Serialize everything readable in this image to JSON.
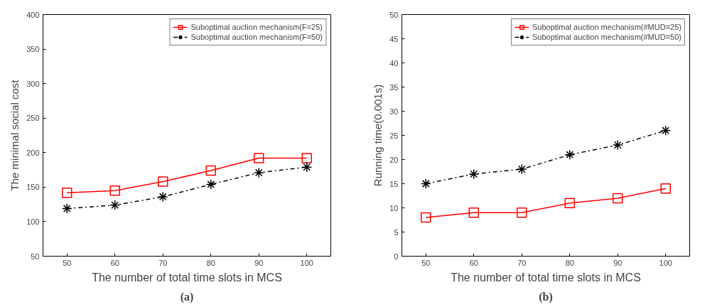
{
  "chart_data": [
    {
      "type": "line",
      "xlabel": "The number of total time slots in MCS",
      "ylabel": "The minimal social cost",
      "x": [
        50,
        60,
        70,
        80,
        90,
        100
      ],
      "xlim": [
        45,
        105
      ],
      "xticks": [
        50,
        60,
        70,
        80,
        90,
        100
      ],
      "ylim": [
        50,
        400
      ],
      "yticks": [
        50,
        100,
        150,
        200,
        250,
        300,
        350,
        400
      ],
      "grid": false,
      "legend": "top right",
      "annotations": [
        "(a)"
      ],
      "series": [
        {
          "name": "Suboptimal auction mechanism(F=25)",
          "color": "#ff0000",
          "values": [
            142,
            145,
            158,
            174,
            192,
            192
          ],
          "marker": "square",
          "line_style": "solid"
        },
        {
          "name": "Suboptimal auction mechanism(F=50)",
          "color": "#000000",
          "values": [
            119,
            124,
            136,
            154,
            171,
            179
          ],
          "marker": "cross",
          "line_style": "dashdot"
        }
      ]
    },
    {
      "type": "line",
      "xlabel": "The number of total time slots in MCS",
      "ylabel": "Running time(0.001s)",
      "x": [
        50,
        60,
        70,
        80,
        90,
        100
      ],
      "xlim": [
        45,
        105
      ],
      "xticks": [
        50,
        60,
        70,
        80,
        90,
        100
      ],
      "ylim": [
        0,
        50
      ],
      "yticks": [
        0,
        5,
        10,
        15,
        20,
        25,
        30,
        35,
        40,
        45,
        50
      ],
      "grid": false,
      "legend": "top right",
      "annotations": [
        "(b)"
      ],
      "series": [
        {
          "name": "Suboptimal auction mechanism(#MUD=25)",
          "color": "#ff0000",
          "values": [
            8,
            9,
            9,
            11,
            12,
            14
          ],
          "marker": "square",
          "line_style": "solid"
        },
        {
          "name": "Suboptimal auction mechanism(#MUD=50)",
          "color": "#000000",
          "values": [
            15,
            17,
            18,
            21,
            23,
            26
          ],
          "marker": "cross",
          "line_style": "dashdot"
        }
      ]
    }
  ]
}
